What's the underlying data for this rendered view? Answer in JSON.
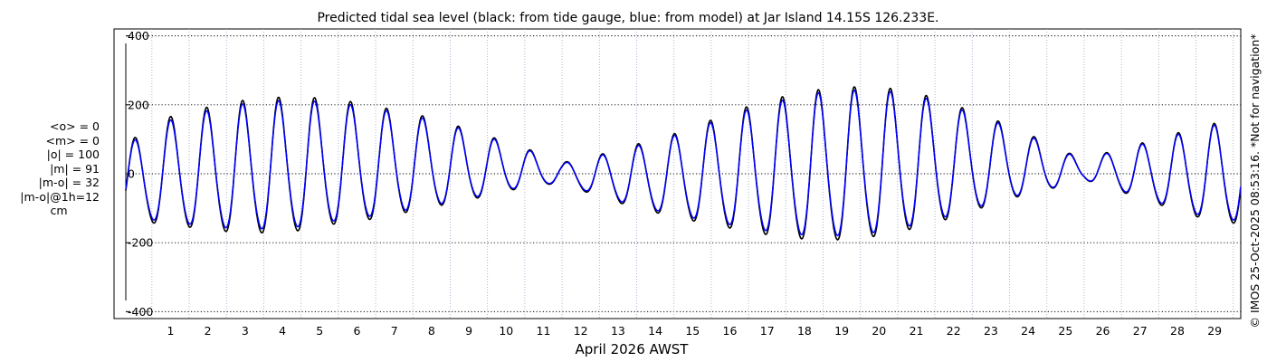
{
  "chart_data": {
    "type": "line",
    "title": "Predicted tidal sea level (black: from tide gauge, blue: from model) at Jar Island 14.15S 126.233E.",
    "xlabel": "April 2026 AWST",
    "ylabel": "",
    "xlim": [
      0.3,
      30.2
    ],
    "ylim": [
      -420,
      420
    ],
    "x_ticks": [
      "1",
      "2",
      "3",
      "4",
      "5",
      "6",
      "7",
      "8",
      "9",
      "10",
      "11",
      "12",
      "13",
      "14",
      "15",
      "16",
      "17",
      "18",
      "19",
      "20",
      "21",
      "22",
      "23",
      "24",
      "25",
      "26",
      "27",
      "28",
      "29"
    ],
    "y_ticks": [
      400,
      200,
      0,
      -200,
      -400
    ],
    "y_tick_labels": [
      "400",
      "200",
      "0",
      "-200",
      "-400"
    ],
    "grid": true,
    "series": [
      {
        "name": "from tide gauge",
        "color": "#000000",
        "x_start": 0.3,
        "x_end": 30.2,
        "samples_per_day": 24,
        "daily_envelope": [
          {
            "day": 0.3,
            "hi": 80,
            "lo": -150
          },
          {
            "day": 1,
            "hi": 150,
            "lo": -160
          },
          {
            "day": 2,
            "hi": 180,
            "lo": -175
          },
          {
            "day": 3,
            "hi": 205,
            "lo": -190
          },
          {
            "day": 4,
            "hi": 220,
            "lo": -195
          },
          {
            "day": 5,
            "hi": 222,
            "lo": -188
          },
          {
            "day": 6,
            "hi": 215,
            "lo": -165
          },
          {
            "day": 7,
            "hi": 195,
            "lo": -150
          },
          {
            "day": 8,
            "hi": 175,
            "lo": -125
          },
          {
            "day": 9,
            "hi": 145,
            "lo": -100
          },
          {
            "day": 10,
            "hi": 110,
            "lo": -75
          },
          {
            "day": 11,
            "hi": 75,
            "lo": -45
          },
          {
            "day": 12,
            "hi": 32,
            "lo": -30
          },
          {
            "day": 13,
            "hi": 55,
            "lo": -75
          },
          {
            "day": 14,
            "hi": 85,
            "lo": -110
          },
          {
            "day": 15,
            "hi": 115,
            "lo": -140
          },
          {
            "day": 16,
            "hi": 155,
            "lo": -165
          },
          {
            "day": 17,
            "hi": 195,
            "lo": -190
          },
          {
            "day": 18,
            "hi": 225,
            "lo": -210
          },
          {
            "day": 19,
            "hi": 245,
            "lo": -220
          },
          {
            "day": 20,
            "hi": 252,
            "lo": -215
          },
          {
            "day": 21,
            "hi": 245,
            "lo": -195
          },
          {
            "day": 22,
            "hi": 220,
            "lo": -165
          },
          {
            "day": 23,
            "hi": 180,
            "lo": -125
          },
          {
            "day": 24,
            "hi": 140,
            "lo": -85
          },
          {
            "day": 25,
            "hi": 90,
            "lo": -55
          },
          {
            "day": 26,
            "hi": 40,
            "lo": -20
          },
          {
            "day": 27,
            "hi": 75,
            "lo": -60
          },
          {
            "day": 28,
            "hi": 100,
            "lo": -100
          },
          {
            "day": 29,
            "hi": 135,
            "lo": -140
          },
          {
            "day": 30.2,
            "hi": 160,
            "lo": -165
          }
        ]
      },
      {
        "name": "from model",
        "color": "#0000ff",
        "x_start": 0.3,
        "x_end": 30.2,
        "samples_per_day": 24,
        "daily_envelope": [
          {
            "day": 0.3,
            "hi": 75,
            "lo": -140
          },
          {
            "day": 1,
            "hi": 140,
            "lo": -150
          },
          {
            "day": 2,
            "hi": 170,
            "lo": -165
          },
          {
            "day": 3,
            "hi": 195,
            "lo": -178
          },
          {
            "day": 4,
            "hi": 210,
            "lo": -182
          },
          {
            "day": 5,
            "hi": 212,
            "lo": -175
          },
          {
            "day": 6,
            "hi": 205,
            "lo": -155
          },
          {
            "day": 7,
            "hi": 188,
            "lo": -140
          },
          {
            "day": 8,
            "hi": 168,
            "lo": -118
          },
          {
            "day": 9,
            "hi": 140,
            "lo": -95
          },
          {
            "day": 10,
            "hi": 106,
            "lo": -70
          },
          {
            "day": 11,
            "hi": 72,
            "lo": -42
          },
          {
            "day": 12,
            "hi": 30,
            "lo": -28
          },
          {
            "day": 13,
            "hi": 52,
            "lo": -70
          },
          {
            "day": 14,
            "hi": 80,
            "lo": -104
          },
          {
            "day": 15,
            "hi": 110,
            "lo": -132
          },
          {
            "day": 16,
            "hi": 148,
            "lo": -155
          },
          {
            "day": 17,
            "hi": 186,
            "lo": -178
          },
          {
            "day": 18,
            "hi": 215,
            "lo": -197
          },
          {
            "day": 19,
            "hi": 236,
            "lo": -206
          },
          {
            "day": 20,
            "hi": 242,
            "lo": -202
          },
          {
            "day": 21,
            "hi": 236,
            "lo": -183
          },
          {
            "day": 22,
            "hi": 212,
            "lo": -155
          },
          {
            "day": 23,
            "hi": 174,
            "lo": -118
          },
          {
            "day": 24,
            "hi": 135,
            "lo": -80
          },
          {
            "day": 25,
            "hi": 86,
            "lo": -52
          },
          {
            "day": 26,
            "hi": 38,
            "lo": -19
          },
          {
            "day": 27,
            "hi": 72,
            "lo": -56
          },
          {
            "day": 28,
            "hi": 96,
            "lo": -94
          },
          {
            "day": 29,
            "hi": 130,
            "lo": -132
          },
          {
            "day": 30.2,
            "hi": 155,
            "lo": -155
          }
        ]
      }
    ],
    "annotations": {
      "stats": [
        "<o> = 0",
        "<m> = 0",
        "|o| = 100",
        "|m| = 91",
        "|m-o| = 32",
        "|m-o|@1h=12",
        "cm"
      ],
      "credit": "© IMOS 25-Oct-2025 08:53:16. *Not for navigation*"
    }
  }
}
